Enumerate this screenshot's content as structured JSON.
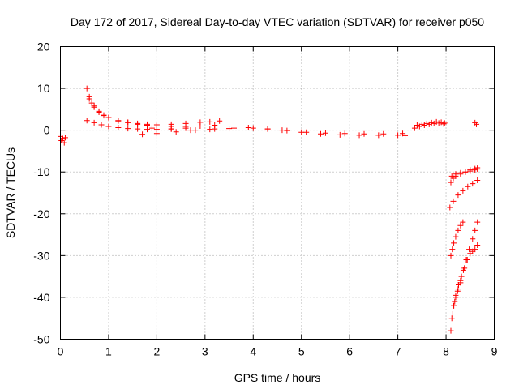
{
  "chart_data": {
    "type": "scatter",
    "title": "Day 172 of 2017, Sidereal Day-to-day VTEC variation (SDTVAR) for receiver p050",
    "xlabel": "GPS time / hours",
    "ylabel": "SDTVAR / TECUs",
    "xlim": [
      0,
      9
    ],
    "ylim": [
      -50,
      20
    ],
    "xticks": [
      "0",
      "1",
      "2",
      "3",
      "4",
      "5",
      "6",
      "7",
      "8",
      "9"
    ],
    "yticks": [
      "20",
      "10",
      "0",
      "-10",
      "-20",
      "-30",
      "-40",
      "-50"
    ],
    "grid": true,
    "marker": "plus",
    "color": "#ff0000",
    "series": [
      {
        "x": [
          0.0,
          0.02,
          0.05,
          0.08,
          0.1
        ],
        "y": [
          -1.5,
          -2.5,
          -2.0,
          -3.0,
          -1.8
        ]
      },
      {
        "x": [
          0.55,
          0.6,
          0.65,
          0.7,
          0.8,
          0.9,
          1.0,
          1.2,
          1.4,
          1.6,
          1.8,
          2.0,
          2.3,
          2.6,
          2.9,
          3.1,
          3.3
        ],
        "y": [
          10.0,
          8.0,
          6.5,
          5.5,
          4.3,
          3.5,
          3.0,
          2.3,
          1.9,
          1.6,
          1.4,
          1.3,
          1.4,
          1.6,
          1.9,
          2.0,
          2.2
        ]
      },
      {
        "x": [
          0.6,
          0.7,
          0.8,
          0.9,
          1.0,
          1.2,
          1.4,
          1.6,
          1.8,
          2.0,
          2.3,
          2.6,
          2.9,
          3.2
        ],
        "y": [
          7.5,
          5.8,
          4.5,
          3.6,
          3.0,
          2.2,
          1.8,
          1.4,
          1.2,
          1.0,
          0.9,
          0.9,
          1.0,
          1.2
        ]
      },
      {
        "x": [
          0.55,
          0.7,
          0.85,
          1.0,
          1.2,
          1.4,
          1.6,
          1.8,
          2.0,
          2.3,
          2.6
        ],
        "y": [
          2.3,
          1.8,
          1.3,
          0.9,
          0.6,
          0.4,
          0.3,
          0.2,
          0.2,
          0.3,
          0.5
        ]
      },
      {
        "x": [
          1.7,
          2.0,
          2.4,
          2.8,
          3.2,
          3.6,
          4.0,
          4.3,
          4.6,
          5.0,
          5.4,
          5.8,
          6.2,
          6.6,
          7.0,
          7.15
        ],
        "y": [
          -1.0,
          -0.8,
          -0.4,
          0.0,
          0.3,
          0.5,
          0.5,
          0.3,
          0.0,
          -0.5,
          -0.9,
          -1.1,
          -1.2,
          -1.2,
          -1.2,
          -1.3
        ]
      },
      {
        "x": [
          1.9,
          2.3,
          2.7,
          3.1,
          3.5,
          3.9,
          4.3,
          4.7,
          5.1,
          5.5,
          5.9,
          6.3,
          6.7,
          7.1
        ],
        "y": [
          0.5,
          0.3,
          0.0,
          0.2,
          0.4,
          0.6,
          0.3,
          -0.1,
          -0.5,
          -0.7,
          -0.8,
          -0.9,
          -0.9,
          -0.8
        ]
      },
      {
        "x": [
          7.35,
          7.45,
          7.55,
          7.65,
          7.75,
          7.85,
          7.95
        ],
        "y": [
          0.5,
          0.9,
          1.2,
          1.4,
          1.6,
          1.7,
          1.5
        ]
      },
      {
        "x": [
          7.4,
          7.5,
          7.6,
          7.7,
          7.8,
          7.9,
          7.97
        ],
        "y": [
          1.2,
          1.4,
          1.6,
          1.8,
          2.0,
          1.9,
          1.7
        ]
      },
      {
        "x": [
          8.6,
          8.63
        ],
        "y": [
          1.8,
          1.4
        ]
      },
      {
        "x": [
          8.1,
          8.15,
          8.2,
          8.3,
          8.4,
          8.5,
          8.6,
          8.65
        ],
        "y": [
          -12.5,
          -11.5,
          -11.0,
          -10.5,
          -10.0,
          -9.5,
          -9.2,
          -9.0
        ]
      },
      {
        "x": [
          8.12,
          8.2,
          8.3,
          8.4,
          8.5,
          8.6,
          8.65
        ],
        "y": [
          -11.0,
          -10.5,
          -10.2,
          -10.0,
          -9.8,
          -9.5,
          -9.3
        ]
      },
      {
        "x": [
          8.08,
          8.15,
          8.25,
          8.35,
          8.45,
          8.55,
          8.65
        ],
        "y": [
          -18.5,
          -17.0,
          -15.5,
          -14.5,
          -13.5,
          -12.8,
          -12.0
        ]
      },
      {
        "x": [
          8.1,
          8.13,
          8.16,
          8.2,
          8.25,
          8.3,
          8.35
        ],
        "y": [
          -30.0,
          -28.5,
          -27.0,
          -25.5,
          -24.0,
          -22.8,
          -22.0
        ]
      },
      {
        "x": [
          8.1,
          8.14,
          8.18,
          8.24,
          8.3,
          8.36,
          8.42,
          8.48,
          8.55,
          8.6,
          8.65
        ],
        "y": [
          -48.0,
          -44.0,
          -41.0,
          -38.5,
          -36.0,
          -33.5,
          -31.0,
          -28.5,
          -26.0,
          -24.0,
          -22.0
        ]
      },
      {
        "x": [
          8.12,
          8.16,
          8.2,
          8.26,
          8.32,
          8.38,
          8.44,
          8.5,
          8.55,
          8.6,
          8.65
        ],
        "y": [
          -45.0,
          -42.0,
          -39.5,
          -37.0,
          -35.0,
          -33.0,
          -31.0,
          -29.5,
          -29.0,
          -28.5,
          -27.5
        ]
      },
      {
        "x": [
          8.16,
          8.2,
          8.25,
          8.3
        ],
        "y": [
          -42.0,
          -40.0,
          -38.0,
          -36.5
        ]
      }
    ]
  }
}
